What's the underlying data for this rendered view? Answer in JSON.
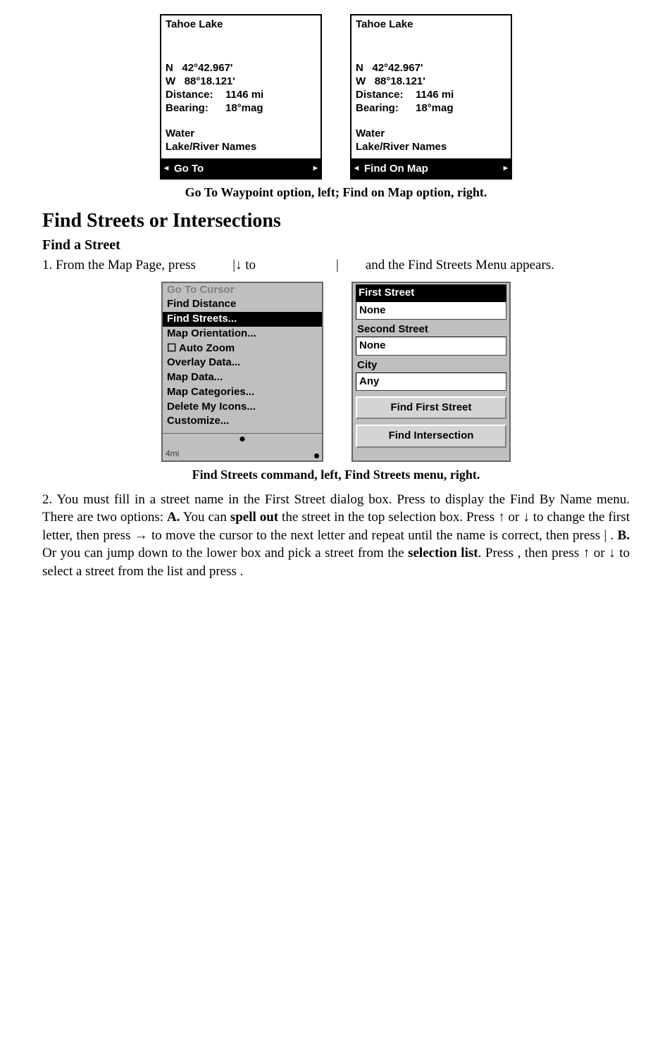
{
  "waypoint_left": {
    "title": "Tahoe Lake",
    "lat_label": "N",
    "lat_value": "42°42.967'",
    "lon_label": "W",
    "lon_value": "88°18.121'",
    "distance_label": "Distance:",
    "distance_value": "1146 mi",
    "bearing_label": "Bearing:",
    "bearing_value": "18°mag",
    "category": "Water",
    "subcategory": "Lake/River Names",
    "footer_label": "Go To",
    "footer_inverted": true
  },
  "waypoint_right": {
    "title": "Tahoe Lake",
    "lat_label": "N",
    "lat_value": "42°42.967'",
    "lon_label": "W",
    "lon_value": "88°18.121'",
    "distance_label": "Distance:",
    "distance_value": "1146 mi",
    "bearing_label": "Bearing:",
    "bearing_value": "18°mag",
    "category": "Water",
    "subcategory": "Lake/River Names",
    "footer_label": "Find On Map",
    "footer_inverted": true
  },
  "caption1": "Go To Waypoint option, left; Find on Map option, right.",
  "section_title": "Find Streets or Intersections",
  "subheading": "Find a Street",
  "para1_a": "1. From the Map Page, press ",
  "para1_b": "|↓ to ",
  "para1_c": "|",
  "para1_d": " and the Find Streets Menu appears.",
  "context_menu": {
    "items": [
      {
        "label": "Go To Cursor",
        "disabled": true
      },
      {
        "label": "Find Distance"
      },
      {
        "label": "Find Streets...",
        "selected": true
      },
      {
        "label": "Map Orientation..."
      },
      {
        "label": "☐ Auto Zoom"
      },
      {
        "label": "Overlay Data..."
      },
      {
        "label": "Map Data..."
      },
      {
        "label": "Map Categories..."
      },
      {
        "label": "Delete My Icons..."
      },
      {
        "label": "Customize..."
      }
    ],
    "scale": "4mi"
  },
  "streets_panel": {
    "first_label": "First Street",
    "first_value": "None",
    "second_label": "Second Street",
    "second_value": "None",
    "city_label": "City",
    "city_value": "Any",
    "btn1": "Find First Street",
    "btn2": "Find Intersection"
  },
  "caption2": "Find Streets command, left, Find Streets menu, right.",
  "para2": "2. You must fill in a street name in the First Street dialog box. Press        to display the Find By Name menu. There are two options: <b>A.</b> You can <b>spell out</b> the street in the top selection box. Press ↑ or ↓ to change the first letter, then press → to move the cursor to the next letter and repeat until the name is correct, then press        |      . <b>B.</b> Or you can jump down to the lower box and pick a street from the <b>selection list</b>. Press       , then press ↑ or ↓ to select a street from the list and press        ."
}
